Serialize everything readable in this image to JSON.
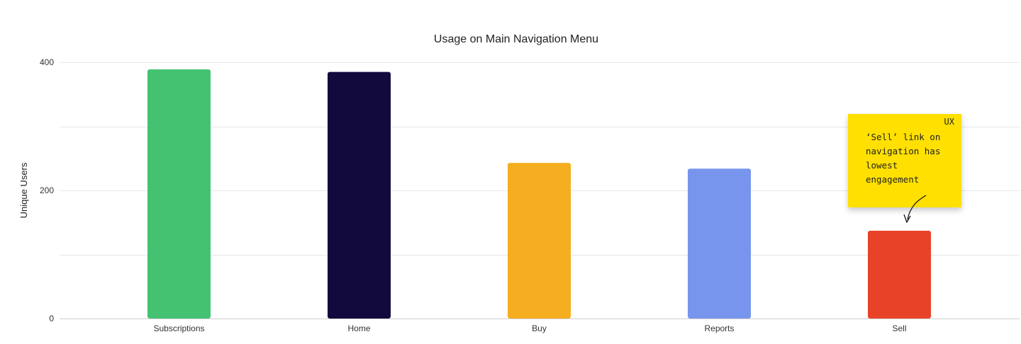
{
  "chart_data": {
    "type": "bar",
    "title": "Usage on Main Navigation Menu",
    "xlabel": "",
    "ylabel": "Unique Users",
    "categories": [
      "Subscriptions",
      "Home",
      "Buy",
      "Reports",
      "Sell"
    ],
    "values": [
      389,
      385,
      243,
      234,
      137
    ],
    "colors": [
      "#44c271",
      "#120a3d",
      "#f5ae20",
      "#7895ee",
      "#e84229"
    ],
    "ylim": [
      0,
      400
    ],
    "yticks": [
      0,
      200,
      400
    ],
    "grid": true,
    "legend": "none"
  },
  "annotation": {
    "tag": "UX",
    "text": "‘Sell’ link on\nnavigation has\nlowest\nengagement",
    "color": "#ffe000",
    "points_to": "Sell"
  }
}
